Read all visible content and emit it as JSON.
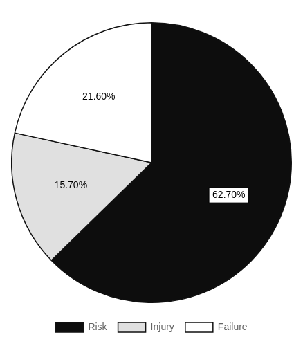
{
  "chart_data": {
    "type": "pie",
    "categories": [
      "Risk",
      "Injury",
      "Failure"
    ],
    "values": [
      62.7,
      15.7,
      21.6
    ],
    "colors": [
      "#0d0d0d",
      "#e0e0e0",
      "#ffffff"
    ],
    "value_labels": [
      "62.70%",
      "15.70%",
      "21.60%"
    ],
    "data_labels": true,
    "legend": "bottom"
  }
}
